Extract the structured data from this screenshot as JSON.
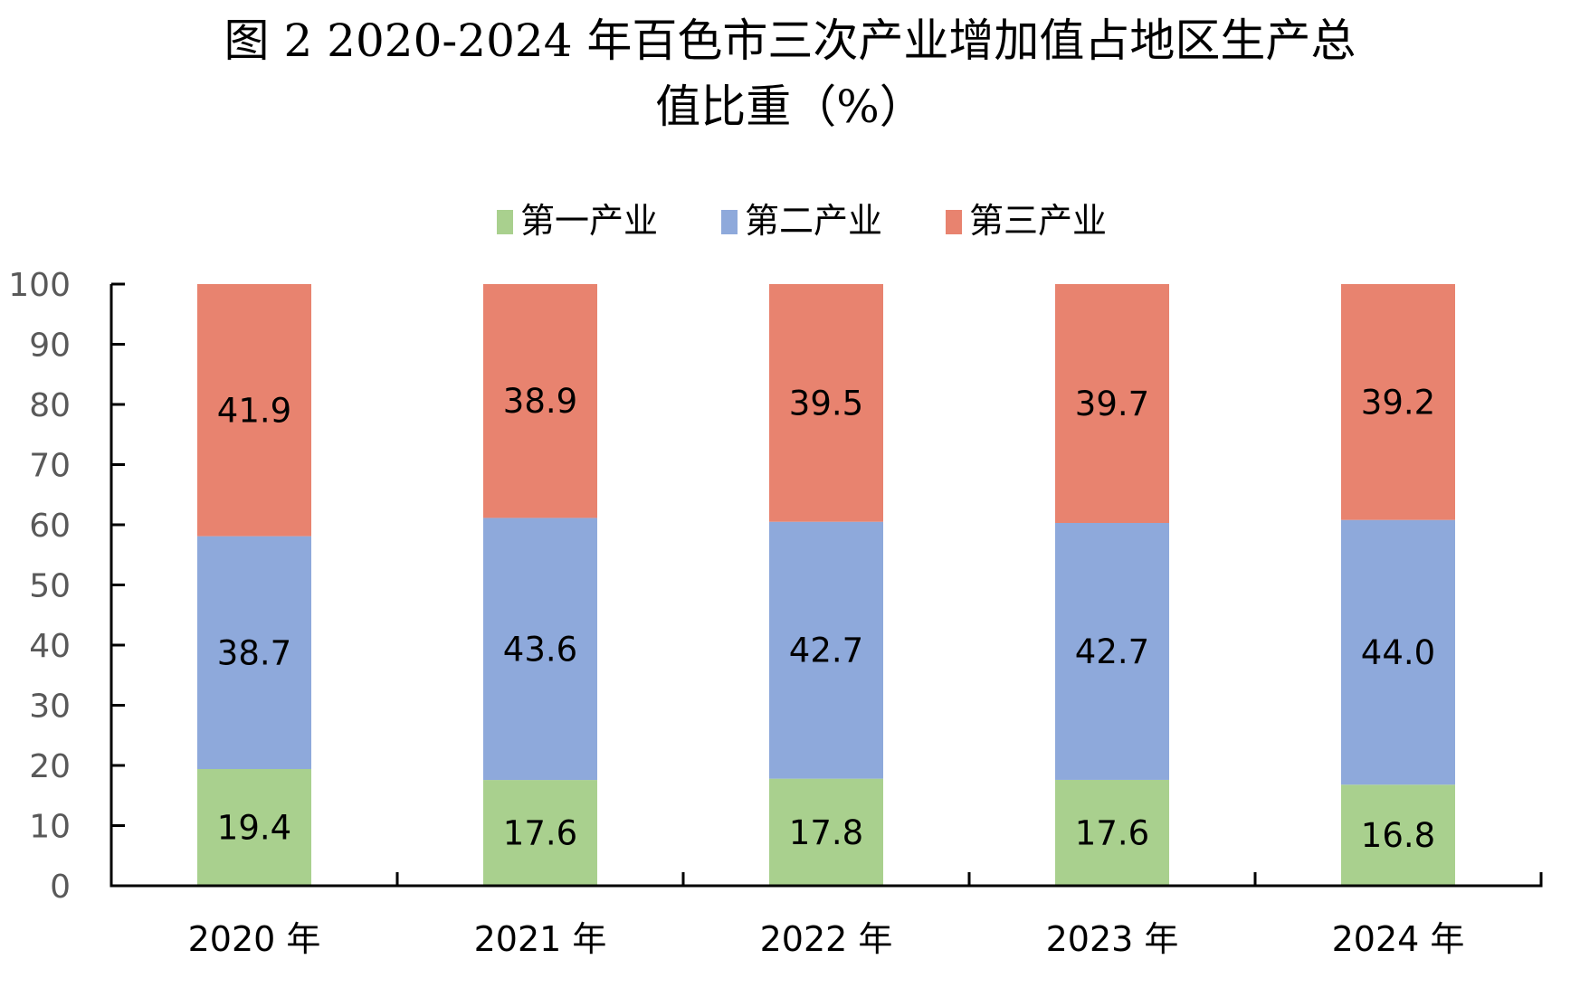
{
  "chart_data": {
    "type": "bar",
    "stacked": true,
    "title_line1": "图 2   2020-2024 年百色市三次产业增加值占地区生产总",
    "title_line2": "值比重（%）",
    "xlabel": "",
    "ylabel": "",
    "ylim": [
      0,
      100
    ],
    "yticks": [
      0,
      10,
      20,
      30,
      40,
      50,
      60,
      70,
      80,
      90,
      100
    ],
    "grid": false,
    "legend_position": "top",
    "categories": [
      "2020 年",
      "2021 年",
      "2022 年",
      "2023 年",
      "2024 年"
    ],
    "series": [
      {
        "name": "第一产业",
        "color": "#A9D08E",
        "values": [
          19.4,
          17.6,
          17.8,
          17.6,
          16.8
        ]
      },
      {
        "name": "第二产业",
        "color": "#8EA9DB",
        "values": [
          38.7,
          43.6,
          42.7,
          42.7,
          44.0
        ]
      },
      {
        "name": "第三产业",
        "color": "#E8836F",
        "values": [
          41.9,
          38.9,
          39.5,
          39.7,
          39.2
        ]
      }
    ],
    "data_labels": [
      [
        "19.4",
        "17.6",
        "17.8",
        "17.6",
        "16.8"
      ],
      [
        "38.7",
        "43.6",
        "42.7",
        "42.7",
        "44.0"
      ],
      [
        "41.9",
        "38.9",
        "39.5",
        "39.7",
        "39.2"
      ]
    ]
  }
}
